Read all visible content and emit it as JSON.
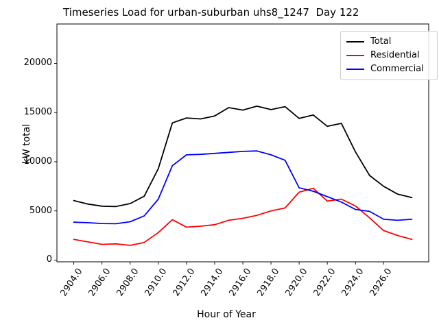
{
  "chart_data": {
    "type": "line",
    "title": "Timeseries Load for urban-suburban uhs8_1247  Day 122",
    "xlabel": "Hour of Year",
    "ylabel": "kW total",
    "grid": false,
    "legend_position": "upper right",
    "xlim": [
      2902.8,
      2929.2
    ],
    "ylim": [
      -175,
      24000
    ],
    "xticks": [
      "2904.0",
      "2906.0",
      "2908.0",
      "2910.0",
      "2912.0",
      "2914.0",
      "2916.0",
      "2918.0",
      "2920.0",
      "2922.0",
      "2924.0",
      "2926.0"
    ],
    "yticks": [
      0,
      5000,
      10000,
      15000,
      20000
    ],
    "x": [
      2904,
      2905,
      2906,
      2907,
      2908,
      2909,
      2910,
      2911,
      2912,
      2913,
      2914,
      2915,
      2916,
      2917,
      2918,
      2919,
      2920,
      2921,
      2922,
      2923,
      2924,
      2925,
      2926,
      2927,
      2928
    ],
    "series": [
      {
        "name": "Total",
        "color": "#000000",
        "values": [
          6050,
          5700,
          5480,
          5450,
          5750,
          6500,
          9300,
          13950,
          14450,
          14350,
          14650,
          15500,
          15250,
          15650,
          15300,
          15600,
          14400,
          14750,
          13600,
          13900,
          11000,
          8600,
          7500,
          6700,
          6350
        ]
      },
      {
        "name": "Residential",
        "color": "#ff0000",
        "values": [
          2100,
          1850,
          1600,
          1650,
          1500,
          1800,
          2800,
          4100,
          3350,
          3450,
          3600,
          4050,
          4250,
          4550,
          5000,
          5300,
          6900,
          7300,
          6000,
          6200,
          5500,
          4300,
          3000,
          2500,
          2100
        ]
      },
      {
        "name": "Commercial",
        "color": "#0000ff",
        "values": [
          3850,
          3800,
          3720,
          3700,
          3900,
          4500,
          6200,
          9600,
          10700,
          10750,
          10850,
          10950,
          11050,
          11100,
          10700,
          10150,
          7350,
          7000,
          6450,
          5900,
          5150,
          4950,
          4150,
          4050,
          4150
        ]
      }
    ]
  }
}
